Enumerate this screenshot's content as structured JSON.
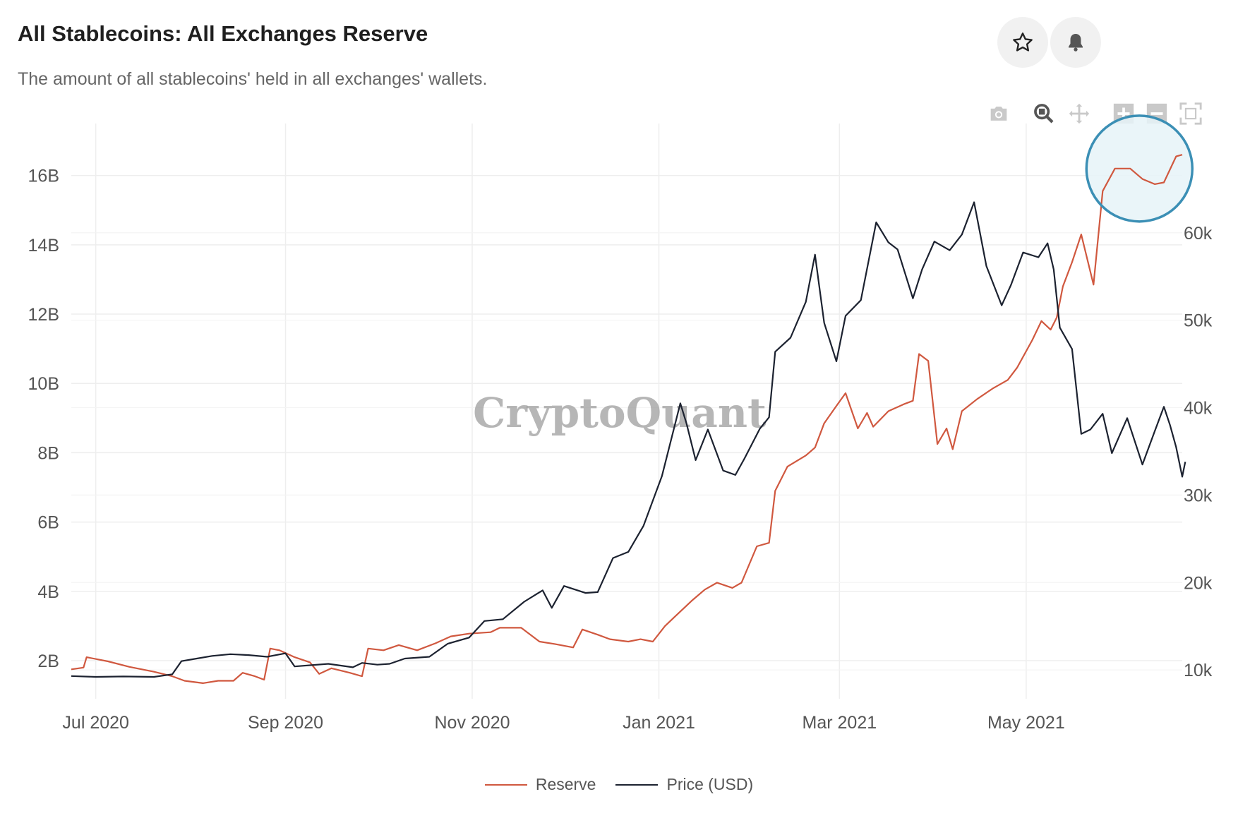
{
  "header": {
    "title": "All Stablecoins: All Exchanges Reserve",
    "subtitle": "The amount of all stablecoins' held in all exchanges' wallets."
  },
  "actions": {
    "favorite_icon": "star-icon",
    "alert_icon": "bell-icon"
  },
  "toolbar": {
    "items": [
      "camera-icon",
      "zoom-icon",
      "pan-icon",
      "zoom-in-icon",
      "zoom-out-icon",
      "autoscale-icon"
    ]
  },
  "watermark": "CryptoQuant",
  "legend": {
    "reserve_label": "Reserve",
    "price_label": "Price (USD)"
  },
  "colors": {
    "reserve": "#d0583f",
    "price": "#1c2230",
    "highlight": "#3b8fb5",
    "highlight_fill": "#e6f3f8"
  },
  "chart_data": {
    "type": "line",
    "title": "All Stablecoins: All Exchanges Reserve",
    "x_start": "2020-06-23",
    "x_end": "2021-06-21",
    "x_ticks": [
      {
        "date": "2020-07-01",
        "label": "Jul 2020"
      },
      {
        "date": "2020-09-01",
        "label": "Sep 2020"
      },
      {
        "date": "2020-11-01",
        "label": "Nov 2020"
      },
      {
        "date": "2021-01-01",
        "label": "Jan 2021"
      },
      {
        "date": "2021-03-01",
        "label": "Mar 2021"
      },
      {
        "date": "2021-05-01",
        "label": "May 2021"
      }
    ],
    "y_left": {
      "min": 0.9,
      "max": 17.5,
      "unit": "B",
      "ticks": [
        2,
        4,
        6,
        8,
        10,
        12,
        14,
        16
      ],
      "tick_labels": [
        "2B",
        "4B",
        "6B",
        "8B",
        "10B",
        "12B",
        "14B",
        "16B"
      ]
    },
    "y_right": {
      "min": 6700,
      "max": 72500,
      "ticks": [
        10000,
        20000,
        30000,
        40000,
        50000,
        60000
      ],
      "tick_labels": [
        "10k",
        "20k",
        "30k",
        "40k",
        "50k",
        "60k"
      ]
    },
    "series": [
      {
        "name": "Reserve",
        "axis": "left",
        "points": [
          [
            "2020-06-23",
            1.75
          ],
          [
            "2020-06-27",
            1.8
          ],
          [
            "2020-06-28",
            2.1
          ],
          [
            "2020-07-05",
            1.98
          ],
          [
            "2020-07-12",
            1.82
          ],
          [
            "2020-07-20",
            1.68
          ],
          [
            "2020-07-26",
            1.55
          ],
          [
            "2020-07-30",
            1.42
          ],
          [
            "2020-08-05",
            1.35
          ],
          [
            "2020-08-10",
            1.42
          ],
          [
            "2020-08-15",
            1.42
          ],
          [
            "2020-08-18",
            1.65
          ],
          [
            "2020-08-22",
            1.55
          ],
          [
            "2020-08-25",
            1.45
          ],
          [
            "2020-08-27",
            2.35
          ],
          [
            "2020-08-30",
            2.3
          ],
          [
            "2020-09-04",
            2.1
          ],
          [
            "2020-09-09",
            1.95
          ],
          [
            "2020-09-12",
            1.62
          ],
          [
            "2020-09-16",
            1.78
          ],
          [
            "2020-09-22",
            1.65
          ],
          [
            "2020-09-26",
            1.55
          ],
          [
            "2020-09-28",
            2.35
          ],
          [
            "2020-10-03",
            2.3
          ],
          [
            "2020-10-08",
            2.45
          ],
          [
            "2020-10-14",
            2.3
          ],
          [
            "2020-10-20",
            2.5
          ],
          [
            "2020-10-25",
            2.7
          ],
          [
            "2020-10-31",
            2.78
          ],
          [
            "2020-11-07",
            2.82
          ],
          [
            "2020-11-10",
            2.95
          ],
          [
            "2020-11-17",
            2.95
          ],
          [
            "2020-11-23",
            2.55
          ],
          [
            "2020-11-28",
            2.48
          ],
          [
            "2020-12-04",
            2.38
          ],
          [
            "2020-12-07",
            2.9
          ],
          [
            "2020-12-12",
            2.75
          ],
          [
            "2020-12-16",
            2.62
          ],
          [
            "2020-12-22",
            2.55
          ],
          [
            "2020-12-26",
            2.62
          ],
          [
            "2020-12-30",
            2.55
          ],
          [
            "2021-01-03",
            3.0
          ],
          [
            "2021-01-06",
            3.25
          ],
          [
            "2021-01-12",
            3.75
          ],
          [
            "2021-01-16",
            4.05
          ],
          [
            "2021-01-20",
            4.25
          ],
          [
            "2021-01-25",
            4.1
          ],
          [
            "2021-01-28",
            4.25
          ],
          [
            "2021-02-02",
            5.3
          ],
          [
            "2021-02-06",
            5.4
          ],
          [
            "2021-02-08",
            6.9
          ],
          [
            "2021-02-12",
            7.6
          ],
          [
            "2021-02-18",
            7.92
          ],
          [
            "2021-02-21",
            8.15
          ],
          [
            "2021-02-24",
            8.85
          ],
          [
            "2021-02-28",
            9.35
          ],
          [
            "2021-03-03",
            9.72
          ],
          [
            "2021-03-07",
            8.7
          ],
          [
            "2021-03-10",
            9.15
          ],
          [
            "2021-03-12",
            8.75
          ],
          [
            "2021-03-17",
            9.2
          ],
          [
            "2021-03-22",
            9.4
          ],
          [
            "2021-03-25",
            9.5
          ],
          [
            "2021-03-27",
            10.85
          ],
          [
            "2021-03-30",
            10.65
          ],
          [
            "2021-04-02",
            8.25
          ],
          [
            "2021-04-05",
            8.7
          ],
          [
            "2021-04-07",
            8.1
          ],
          [
            "2021-04-10",
            9.2
          ],
          [
            "2021-04-15",
            9.55
          ],
          [
            "2021-04-20",
            9.85
          ],
          [
            "2021-04-25",
            10.1
          ],
          [
            "2021-04-28",
            10.45
          ],
          [
            "2021-05-03",
            11.25
          ],
          [
            "2021-05-06",
            11.8
          ],
          [
            "2021-05-09",
            11.55
          ],
          [
            "2021-05-11",
            11.9
          ],
          [
            "2021-05-13",
            12.8
          ],
          [
            "2021-05-16",
            13.5
          ],
          [
            "2021-05-19",
            14.3
          ],
          [
            "2021-05-23",
            12.85
          ],
          [
            "2021-05-26",
            15.55
          ],
          [
            "2021-05-30",
            16.2
          ],
          [
            "2021-06-04",
            16.2
          ],
          [
            "2021-06-08",
            15.9
          ],
          [
            "2021-06-12",
            15.75
          ],
          [
            "2021-06-15",
            15.8
          ],
          [
            "2021-06-19",
            16.55
          ],
          [
            "2021-06-21",
            16.6
          ]
        ]
      },
      {
        "name": "Price (USD)",
        "axis": "right",
        "points": [
          [
            "2020-06-23",
            9300
          ],
          [
            "2020-07-01",
            9200
          ],
          [
            "2020-07-10",
            9250
          ],
          [
            "2020-07-20",
            9200
          ],
          [
            "2020-07-26",
            9500
          ],
          [
            "2020-07-29",
            11000
          ],
          [
            "2020-08-03",
            11300
          ],
          [
            "2020-08-08",
            11600
          ],
          [
            "2020-08-14",
            11800
          ],
          [
            "2020-08-20",
            11700
          ],
          [
            "2020-08-26",
            11500
          ],
          [
            "2020-09-01",
            11900
          ],
          [
            "2020-09-04",
            10400
          ],
          [
            "2020-09-15",
            10700
          ],
          [
            "2020-09-23",
            10300
          ],
          [
            "2020-09-26",
            10800
          ],
          [
            "2020-10-01",
            10600
          ],
          [
            "2020-10-05",
            10700
          ],
          [
            "2020-10-10",
            11300
          ],
          [
            "2020-10-18",
            11500
          ],
          [
            "2020-10-24",
            13000
          ],
          [
            "2020-10-31",
            13700
          ],
          [
            "2020-11-05",
            15600
          ],
          [
            "2020-11-11",
            15800
          ],
          [
            "2020-11-18",
            17800
          ],
          [
            "2020-11-24",
            19100
          ],
          [
            "2020-11-27",
            17100
          ],
          [
            "2020-12-01",
            19600
          ],
          [
            "2020-12-08",
            18800
          ],
          [
            "2020-12-12",
            18900
          ],
          [
            "2020-12-17",
            22800
          ],
          [
            "2020-12-22",
            23500
          ],
          [
            "2020-12-27",
            26500
          ],
          [
            "2021-01-02",
            32200
          ],
          [
            "2021-01-08",
            40500
          ],
          [
            "2021-01-10",
            38200
          ],
          [
            "2021-01-13",
            34000
          ],
          [
            "2021-01-17",
            37500
          ],
          [
            "2021-01-22",
            32800
          ],
          [
            "2021-01-26",
            32300
          ],
          [
            "2021-01-29",
            34200
          ],
          [
            "2021-02-03",
            37600
          ],
          [
            "2021-02-06",
            38900
          ],
          [
            "2021-02-08",
            46400
          ],
          [
            "2021-02-13",
            48000
          ],
          [
            "2021-02-18",
            52100
          ],
          [
            "2021-02-21",
            57500
          ],
          [
            "2021-02-24",
            49700
          ],
          [
            "2021-02-28",
            45300
          ],
          [
            "2021-03-03",
            50500
          ],
          [
            "2021-03-08",
            52300
          ],
          [
            "2021-03-13",
            61200
          ],
          [
            "2021-03-17",
            58900
          ],
          [
            "2021-03-20",
            58100
          ],
          [
            "2021-03-25",
            52500
          ],
          [
            "2021-03-28",
            55800
          ],
          [
            "2021-04-01",
            59000
          ],
          [
            "2021-04-06",
            58000
          ],
          [
            "2021-04-10",
            59800
          ],
          [
            "2021-04-14",
            63500
          ],
          [
            "2021-04-18",
            56200
          ],
          [
            "2021-04-23",
            51700
          ],
          [
            "2021-04-26",
            54000
          ],
          [
            "2021-04-30",
            57750
          ],
          [
            "2021-05-05",
            57200
          ],
          [
            "2021-05-08",
            58800
          ],
          [
            "2021-05-10",
            55800
          ],
          [
            "2021-05-12",
            49150
          ],
          [
            "2021-05-16",
            46700
          ],
          [
            "2021-05-19",
            37000
          ],
          [
            "2021-05-22",
            37500
          ],
          [
            "2021-05-26",
            39300
          ],
          [
            "2021-05-29",
            34800
          ],
          [
            "2021-06-03",
            38800
          ],
          [
            "2021-06-08",
            33500
          ],
          [
            "2021-06-12",
            37300
          ],
          [
            "2021-06-15",
            40100
          ],
          [
            "2021-06-17",
            38000
          ],
          [
            "2021-06-19",
            35500
          ],
          [
            "2021-06-21",
            32100
          ],
          [
            "2021-06-22",
            33800
          ]
        ]
      }
    ],
    "annotation": {
      "type": "circle",
      "target": "latest reserve values",
      "date": "2021-06-07",
      "value": 16.2
    }
  }
}
